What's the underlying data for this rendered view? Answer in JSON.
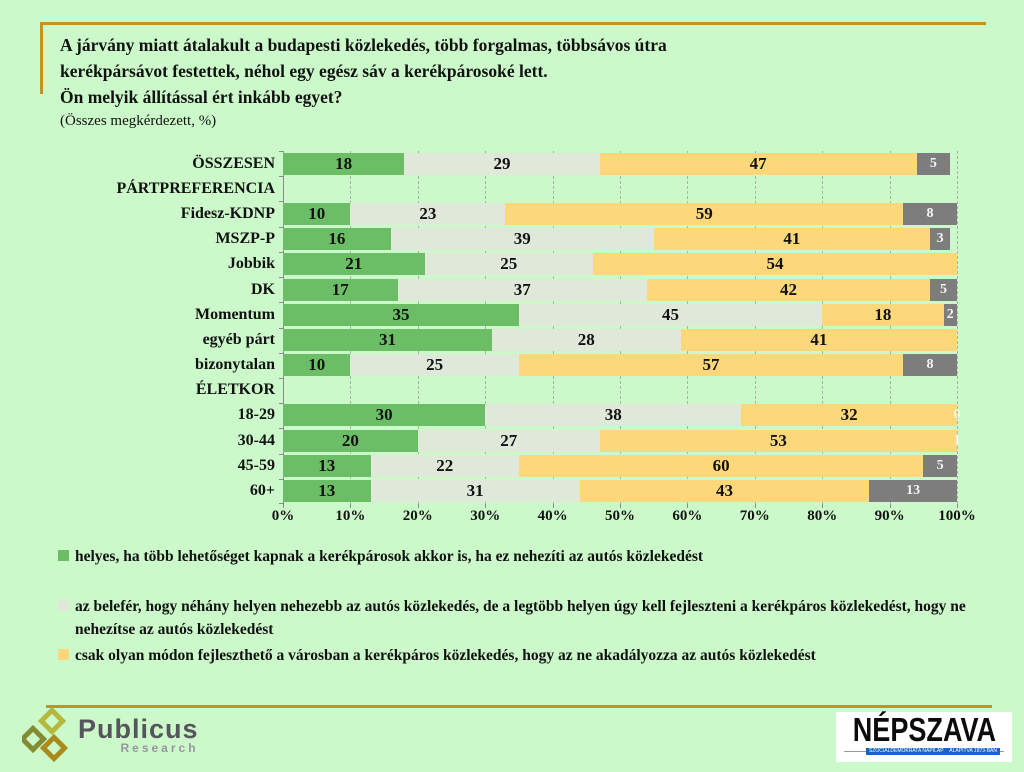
{
  "title": {
    "lines": [
      "A járvány miatt átalakult a budapesti közlekedés, több forgalmas, többsávos útra",
      "kerékpársávot festettek, néhol egy egész sáv a kerékpárosoké lett.",
      "Ön melyik állítással ért inkább egyet?"
    ],
    "subtitle": "(Összes megkérdezett, %)"
  },
  "chart_data": {
    "type": "bar",
    "orientation": "horizontal",
    "stacked": true,
    "xlim": [
      0,
      100
    ],
    "x_tick_labels": [
      "0%",
      "10%",
      "20%",
      "30%",
      "40%",
      "50%",
      "60%",
      "70%",
      "80%",
      "90%",
      "100%"
    ],
    "grid": "dashed-vertical",
    "segment_colors": [
      "#6cbe66",
      "#dfe8d9",
      "#fcd87b",
      "#7d7d7d"
    ],
    "rows": [
      {
        "label": "ÖSSZESEN",
        "header": false,
        "values": [
          18,
          29,
          47,
          5
        ]
      },
      {
        "label": "PÁRTPREFERENCIA",
        "header": true,
        "values": null
      },
      {
        "label": "Fidesz-KDNP",
        "header": false,
        "values": [
          10,
          23,
          59,
          8
        ]
      },
      {
        "label": "MSZP-P",
        "header": false,
        "values": [
          16,
          39,
          41,
          3
        ]
      },
      {
        "label": "Jobbik",
        "header": false,
        "values": [
          21,
          25,
          54
        ]
      },
      {
        "label": "DK",
        "header": false,
        "values": [
          17,
          37,
          42,
          5
        ]
      },
      {
        "label": "Momentum",
        "header": false,
        "values": [
          35,
          45,
          18,
          2
        ]
      },
      {
        "label": "egyéb párt",
        "header": false,
        "values": [
          31,
          28,
          41
        ]
      },
      {
        "label": "bizonytalan",
        "header": false,
        "values": [
          10,
          25,
          57,
          8
        ]
      },
      {
        "label": "ÉLETKOR",
        "header": true,
        "values": null
      },
      {
        "label": "18-29",
        "header": false,
        "values": [
          30,
          38,
          32,
          0
        ]
      },
      {
        "label": "30-44",
        "header": false,
        "values": [
          20,
          27,
          53,
          1
        ]
      },
      {
        "label": "45-59",
        "header": false,
        "values": [
          13,
          22,
          60,
          5
        ]
      },
      {
        "label": "60+",
        "header": false,
        "values": [
          13,
          31,
          43,
          13
        ]
      }
    ],
    "legend": [
      {
        "label": "helyes, ha több lehetőséget kapnak a kerékpárosok akkor is, ha ez nehezíti az autós közlekedést",
        "color": "#6cbe66"
      },
      {
        "label": "az belefér, hogy néhány helyen nehezebb az autós közlekedés, de a legtöbb helyen úgy kell fejleszteni a kerékpáros közlekedést, hogy ne nehezítse az autós közlekedést",
        "color": "#dfe8d9"
      },
      {
        "label": "csak olyan módon fejleszthető a városban a kerékpáros közlekedés, hogy az ne akadályozza az autós közlekedést",
        "color": "#fcd87b"
      }
    ]
  },
  "footer": {
    "publicus_word": "Publicus",
    "publicus_sub": "Research",
    "nepszava_word": "NÉPSZAVA",
    "nepszava_chip1": "SZOCIÁLDEMOKRATA NAPILAP",
    "nepszava_chip2": "ALAPÍTVA 1873-BAN"
  },
  "colors": {
    "background": "#ccf9ca",
    "gold_rule": "#c6921c",
    "axis": "#8a8a8a",
    "gridline": "#a9b4a6",
    "dark_segment_text": "#f4f4f4"
  }
}
